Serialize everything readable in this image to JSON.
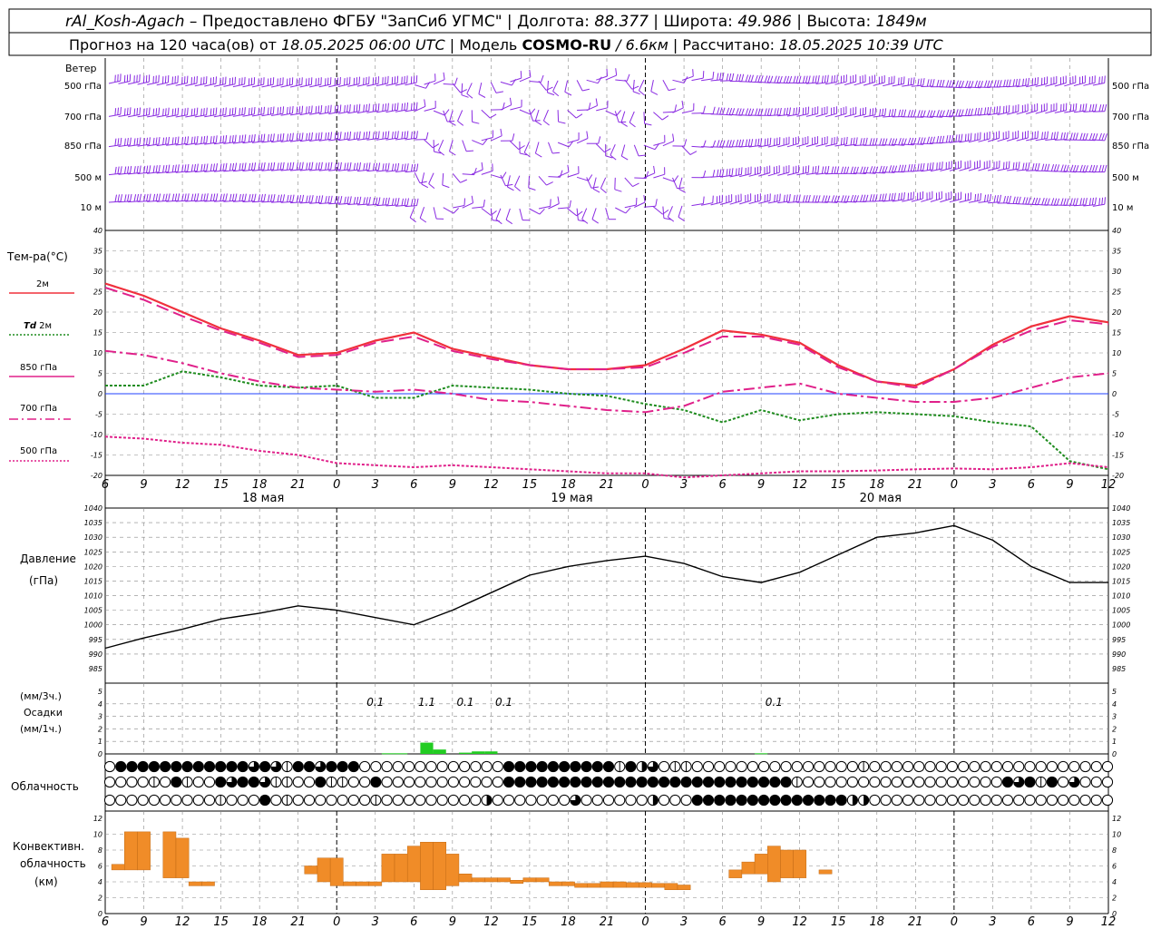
{
  "header": {
    "station": "rAl_Kosh-Agach",
    "provider": "Предоставлено ФГБУ \"ЗапСиб УГМС\"",
    "lon_label": "Долгота:",
    "lon": "88.377",
    "lat_label": "Широта:",
    "lat": "49.986",
    "alt_label": "Высота:",
    "alt": "1849м",
    "forecast_label": "Прогноз на 120 часа(ов) от",
    "forecast_start": "18.05.2025 06:00 UTC",
    "model_label": "Модель",
    "model": "COSMO-RU",
    "resolution": "/ 6.6км",
    "calc_label": "Рассчитано:",
    "calc_time": "18.05.2025 10:39 UTC"
  },
  "colors": {
    "t2m": "#f0303c",
    "td2m": "#1e8c1e",
    "t850": "#e0208a",
    "t700": "#e0208a",
    "t500": "#e0208a",
    "wind": "#8a2be2",
    "zero_line": "#2040ff",
    "precip": "#22cc22",
    "convective": "#f08c28",
    "grid": "#888888"
  },
  "time_axis": {
    "hours": [
      "6",
      "9",
      "12",
      "15",
      "18",
      "21",
      "0",
      "3",
      "6",
      "9",
      "12",
      "15",
      "18",
      "21",
      "0",
      "3",
      "6",
      "9",
      "12",
      "15",
      "18",
      "21",
      "0",
      "3",
      "6",
      "9",
      "12"
    ],
    "days": [
      "18 мая",
      "19 мая",
      "20 мая"
    ]
  },
  "wind_panel": {
    "title": "Ветер",
    "levels": [
      "500 гПа",
      "700 гПа",
      "850 гПа",
      "500 м",
      "10 м"
    ]
  },
  "chart_data": [
    {
      "type": "line",
      "title": "Тем-ра(°C)",
      "ylim": [
        -20,
        40
      ],
      "yticks": [
        "-20",
        "-15",
        "-10",
        "-5",
        "0",
        "5",
        "10",
        "15",
        "20",
        "25",
        "30",
        "35",
        "40"
      ],
      "x": [
        "18.05 06",
        "18.05 09",
        "18.05 12",
        "18.05 15",
        "18.05 18",
        "18.05 21",
        "19.05 00",
        "19.05 03",
        "19.05 06",
        "19.05 09",
        "19.05 12",
        "19.05 15",
        "19.05 18",
        "19.05 21",
        "20.05 00",
        "20.05 03",
        "20.05 06",
        "20.05 09",
        "20.05 12",
        "20.05 15",
        "20.05 18",
        "20.05 21",
        "21.05 00",
        "21.05 03",
        "21.05 06",
        "21.05 09",
        "21.05 12"
      ],
      "series": [
        {
          "name": "2м",
          "values": [
            27,
            24,
            20,
            16,
            13,
            9.5,
            10,
            13,
            15,
            11,
            9,
            7,
            6,
            6,
            7,
            11,
            15.5,
            14.5,
            12.5,
            7,
            3,
            2,
            6,
            12,
            16.5,
            19,
            17.5
          ]
        },
        {
          "name": "Td 2м",
          "values": [
            2,
            2,
            5.5,
            4,
            2,
            1.5,
            2,
            -1,
            -1,
            2,
            1.5,
            1,
            0,
            -0.5,
            -2.5,
            -4,
            -7,
            -4,
            -6.5,
            -5,
            -4.5,
            -5,
            -5.5,
            -7,
            -8,
            -16.5,
            -18.5
          ]
        },
        {
          "name": "850 гПа",
          "values": [
            26,
            23,
            19,
            15.5,
            12.5,
            9,
            9.5,
            12.5,
            14,
            10.5,
            8.5,
            7,
            6,
            6,
            6.5,
            10,
            14,
            14,
            12,
            6.5,
            3,
            1.5,
            6,
            11.5,
            15.5,
            18,
            17
          ]
        },
        {
          "name": "700 гПа",
          "values": [
            10.5,
            9.5,
            7.5,
            5,
            3,
            1.5,
            1,
            0.5,
            1,
            0,
            -1.5,
            -2,
            -3,
            -4,
            -4.5,
            -3,
            0.5,
            1.5,
            2.5,
            0,
            -1,
            -2,
            -2,
            -1,
            1.5,
            4,
            5
          ]
        },
        {
          "name": "500 гПа",
          "values": [
            -10.5,
            -11,
            -12,
            -12.5,
            -14,
            -15,
            -17,
            -17.5,
            -18,
            -17.5,
            -18,
            -18.5,
            -19,
            -19.5,
            -19.5,
            -20.5,
            -20,
            -19.5,
            -19,
            -19,
            -18.8,
            -18.5,
            -18.3,
            -18.5,
            -18,
            -17,
            -18
          ]
        }
      ]
    },
    {
      "type": "line",
      "title": "Давление",
      "ylabel": "(гПа)",
      "ylim": [
        985,
        1040
      ],
      "yticks": [
        "985",
        "990",
        "995",
        "1000",
        "1005",
        "1010",
        "1015",
        "1020",
        "1025",
        "1030",
        "1035",
        "1040"
      ],
      "x": [
        "18.05 06",
        "18.05 09",
        "18.05 12",
        "18.05 15",
        "18.05 18",
        "18.05 21",
        "19.05 00",
        "19.05 03",
        "19.05 06",
        "19.05 09",
        "19.05 12",
        "19.05 15",
        "19.05 18",
        "19.05 21",
        "20.05 00",
        "20.05 03",
        "20.05 06",
        "20.05 09",
        "20.05 12",
        "20.05 15",
        "20.05 18",
        "20.05 21",
        "21.05 00",
        "21.05 03",
        "21.05 06",
        "21.05 09",
        "21.05 12"
      ],
      "series": [
        {
          "name": "Давление",
          "values": [
            992,
            995.5,
            998.5,
            1002,
            1004,
            1006.5,
            1005,
            1002.5,
            1000,
            1005,
            1011,
            1017,
            1020,
            1022,
            1023.5,
            1021,
            1016.5,
            1014.5,
            1018,
            1024,
            1030,
            1031.5,
            1034,
            1029,
            1020,
            1014.5,
            1014.5
          ]
        }
      ]
    },
    {
      "type": "bar",
      "title": "Осадки",
      "ylabel": "(мм/3ч.) (мм/1ч.)",
      "ylim": [
        0,
        5
      ],
      "yticks": [
        "0",
        "1",
        "2",
        "3",
        "4",
        "5"
      ],
      "series": [
        {
          "name": "мм/3ч.",
          "labels": [
            {
              "x": "19.05 03",
              "value": "0.1"
            },
            {
              "x": "19.05 07",
              "value": "1.1"
            },
            {
              "x": "19.05 10",
              "value": "0.1"
            },
            {
              "x": "19.05 13",
              "value": "0.1"
            },
            {
              "x": "20.05 10",
              "value": "0.1"
            }
          ]
        },
        {
          "name": "мм/1ч.",
          "values": [
            {
              "x": "19.05 04",
              "v": 0.05
            },
            {
              "x": "19.05 05",
              "v": 0.05
            },
            {
              "x": "19.05 07",
              "v": 0.9
            },
            {
              "x": "19.05 08",
              "v": 0.35
            },
            {
              "x": "19.05 10",
              "v": 0.1
            },
            {
              "x": "19.05 11",
              "v": 0.2
            },
            {
              "x": "19.05 12",
              "v": 0.2
            },
            {
              "x": "20.05 09",
              "v": 0.05
            }
          ]
        }
      ]
    },
    {
      "type": "bar",
      "title": "Конвективн. облачность",
      "ylabel": "(км)",
      "ylim": [
        0,
        12
      ],
      "yticks": [
        "0",
        "2",
        "4",
        "6",
        "8",
        "10",
        "12"
      ],
      "bars": [
        {
          "x": "18.05 07",
          "base": 5.5,
          "top": 6.2
        },
        {
          "x": "18.05 08",
          "base": 5.5,
          "top": 10.3
        },
        {
          "x": "18.05 09",
          "base": 5.5,
          "top": 10.3
        },
        {
          "x": "18.05 11",
          "base": 4.5,
          "top": 10.3
        },
        {
          "x": "18.05 12",
          "base": 4.5,
          "top": 9.5
        },
        {
          "x": "18.05 13",
          "base": 3.5,
          "top": 4.0
        },
        {
          "x": "18.05 14",
          "base": 3.5,
          "top": 4.0
        },
        {
          "x": "18.05 22",
          "base": 5.0,
          "top": 6.0
        },
        {
          "x": "18.05 23",
          "base": 4.0,
          "top": 7.0
        },
        {
          "x": "19.05 00",
          "base": 3.5,
          "top": 7.0
        },
        {
          "x": "19.05 01",
          "base": 3.5,
          "top": 4.0
        },
        {
          "x": "19.05 02",
          "base": 3.5,
          "top": 4.0
        },
        {
          "x": "19.05 03",
          "base": 3.5,
          "top": 4.0
        },
        {
          "x": "19.05 04",
          "base": 4.0,
          "top": 7.5
        },
        {
          "x": "19.05 05",
          "base": 4.0,
          "top": 7.5
        },
        {
          "x": "19.05 06",
          "base": 4.0,
          "top": 8.5
        },
        {
          "x": "19.05 07",
          "base": 3.0,
          "top": 9.0
        },
        {
          "x": "19.05 08",
          "base": 3.0,
          "top": 9.0
        },
        {
          "x": "19.05 09",
          "base": 3.5,
          "top": 7.5
        },
        {
          "x": "19.05 10",
          "base": 4.0,
          "top": 5.0
        },
        {
          "x": "19.05 11",
          "base": 4.0,
          "top": 4.5
        },
        {
          "x": "19.05 12",
          "base": 4.0,
          "top": 4.5
        },
        {
          "x": "19.05 13",
          "base": 4.0,
          "top": 4.5
        },
        {
          "x": "19.05 14",
          "base": 3.8,
          "top": 4.2
        },
        {
          "x": "19.05 15",
          "base": 4.0,
          "top": 4.5
        },
        {
          "x": "19.05 16",
          "base": 4.0,
          "top": 4.5
        },
        {
          "x": "19.05 17",
          "base": 3.5,
          "top": 4.0
        },
        {
          "x": "19.05 18",
          "base": 3.5,
          "top": 4.0
        },
        {
          "x": "19.05 19",
          "base": 3.3,
          "top": 3.8
        },
        {
          "x": "19.05 20",
          "base": 3.3,
          "top": 3.8
        },
        {
          "x": "19.05 21",
          "base": 3.3,
          "top": 4.0
        },
        {
          "x": "19.05 22",
          "base": 3.3,
          "top": 4.0
        },
        {
          "x": "19.05 23",
          "base": 3.3,
          "top": 3.9
        },
        {
          "x": "20.05 00",
          "base": 3.3,
          "top": 3.9
        },
        {
          "x": "20.05 01",
          "base": 3.3,
          "top": 3.8
        },
        {
          "x": "20.05 02",
          "base": 3.0,
          "top": 3.8
        },
        {
          "x": "20.05 03",
          "base": 3.0,
          "top": 3.6
        },
        {
          "x": "20.05 07",
          "base": 4.5,
          "top": 5.5
        },
        {
          "x": "20.05 08",
          "base": 5.0,
          "top": 6.5
        },
        {
          "x": "20.05 09",
          "base": 5.0,
          "top": 7.5
        },
        {
          "x": "20.05 10",
          "base": 4.0,
          "top": 8.5
        },
        {
          "x": "20.05 11",
          "base": 4.5,
          "top": 8.0
        },
        {
          "x": "20.05 12",
          "base": 4.5,
          "top": 8.0
        },
        {
          "x": "20.05 14",
          "base": 5.0,
          "top": 5.5
        }
      ]
    }
  ],
  "legend": {
    "t2m": "2м",
    "td2m_italic": "Td",
    "td2m": "2м",
    "t850": "850 гПа",
    "t700": "700 гПа",
    "t500": "500 гПа"
  },
  "cloud_panel": {
    "title": "Облачность",
    "rows": [
      "0ffffffffffff3f31ff3fff0000000000000ffffffffff1f2301100000000000000010000000000000000000000000000000000000000000000000000000000001103100000",
      "000010f100f3ff31100f1100f00000000000ffffffffffffffffffffffffff1000000000000000000f3f1f0300000000000000000000000000000000000000000000000000000",
      "00000000001000f01000000010000000002000000030000002000ffffffffffffff2200000000000000000000000000000000000000000000000000000000000000000000"
    ]
  },
  "precip_panel": {
    "title": "Осадки",
    "units_3h": "(мм/3ч.)",
    "units_1h": "(мм/1ч.)"
  },
  "pressure_panel": {
    "title": "Давление",
    "units": "(гПа)"
  },
  "temp_panel": {
    "title": "Тем-ра(°C)"
  },
  "conv_panel": {
    "title_1": "Конвективн.",
    "title_2": "облачность",
    "units": "(км)"
  }
}
